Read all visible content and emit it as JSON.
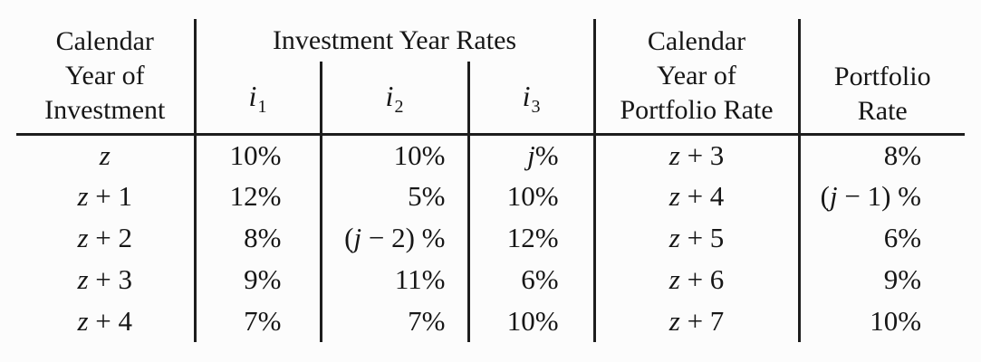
{
  "table": {
    "header": {
      "col_calendar_investment": {
        "lines": [
          "Calendar",
          "Year of",
          "Investment"
        ]
      },
      "group_investment_year_rates": "Investment Year Rates",
      "rate_cols": [
        {
          "base": "i",
          "sub": "1"
        },
        {
          "base": "i",
          "sub": "2"
        },
        {
          "base": "i",
          "sub": "3"
        }
      ],
      "col_calendar_portfolio": {
        "lines": [
          "Calendar",
          "Year of",
          "Portfolio Rate"
        ]
      },
      "col_portfolio_rate": {
        "lines": [
          "Portfolio",
          "Rate"
        ]
      }
    },
    "rows": [
      {
        "year": "z",
        "i1": "10%",
        "i2": "10%",
        "i3": "j%",
        "portfolio_year": "z + 3",
        "portfolio_rate": "8%"
      },
      {
        "year": "z + 1",
        "i1": "12%",
        "i2": "5%",
        "i3": "10%",
        "portfolio_year": "z + 4",
        "portfolio_rate": "(j − 1) %"
      },
      {
        "year": "z + 2",
        "i1": "8%",
        "i2": "(j − 2) %",
        "i3": "12%",
        "portfolio_year": "z + 5",
        "portfolio_rate": "6%"
      },
      {
        "year": "z + 3",
        "i1": "9%",
        "i2": "11%",
        "i3": "6%",
        "portfolio_year": "z + 6",
        "portfolio_rate": "9%"
      },
      {
        "year": "z + 4",
        "i1": "7%",
        "i2": "7%",
        "i3": "10%",
        "portfolio_year": "z + 7",
        "portfolio_rate": "10%"
      }
    ],
    "colors": {
      "text": "#161616",
      "rule": "#1d1d1d",
      "background": "#fcfcfc"
    }
  }
}
